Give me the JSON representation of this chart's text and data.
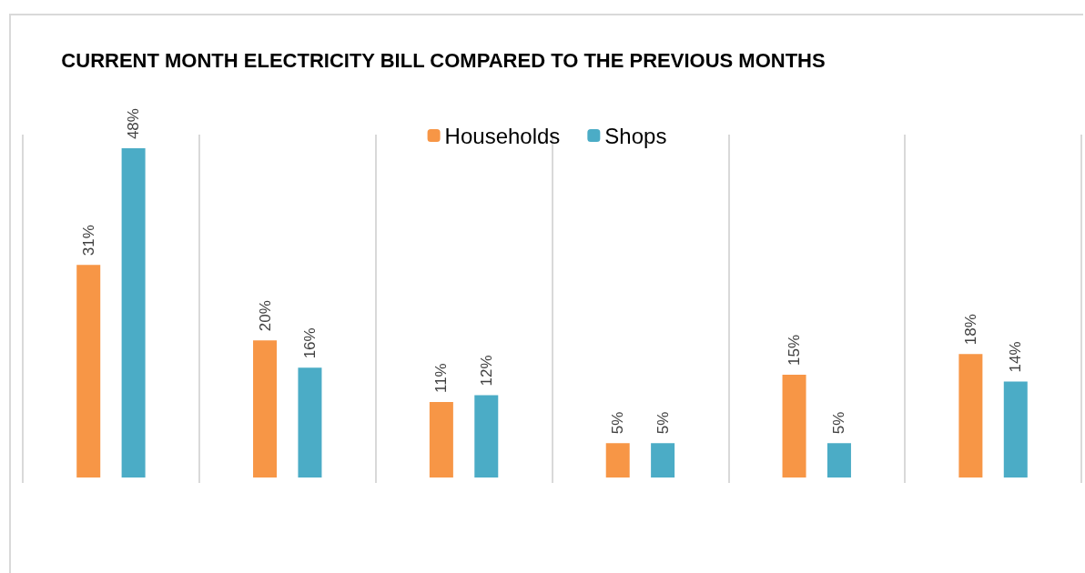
{
  "chart_data": {
    "type": "bar",
    "title": "CURRENT MONTH ELECTRICITY BILL COMPARED TO THE PREVIOUS MONTHS",
    "categories": [
      null,
      null,
      null,
      null,
      null,
      null
    ],
    "series": [
      {
        "name": "Households",
        "color": "#f79646",
        "values": [
          31,
          20,
          11,
          5,
          15,
          18
        ],
        "value_labels": [
          "31%",
          "20%",
          "11%",
          "5%",
          "15%",
          "18%"
        ]
      },
      {
        "name": "Shops",
        "color": "#4bacc6",
        "values": [
          48,
          16,
          12,
          5,
          5,
          14
        ],
        "value_labels": [
          "48%",
          "16%",
          "12%",
          "5%",
          "5%",
          "14%"
        ]
      }
    ],
    "grid": "x",
    "legend": "top"
  }
}
